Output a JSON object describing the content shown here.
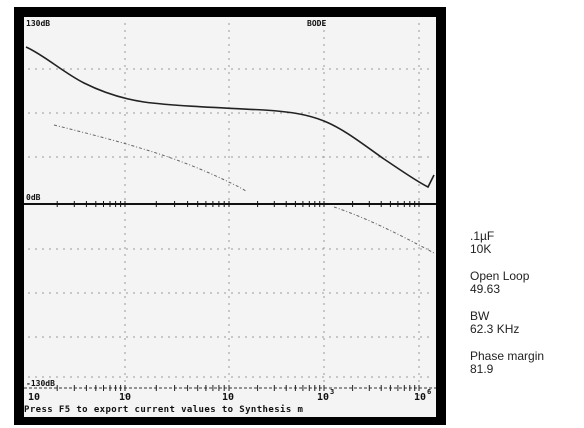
{
  "window": {
    "top_left_label": "130dB",
    "top_center_label": "BODE",
    "zero_label": "0dB",
    "bottom_label": "-130dB",
    "x_tick_labels": [
      "10",
      "10",
      "10",
      "10",
      "10"
    ],
    "x_tick_exponents": [
      "",
      "",
      "",
      "3",
      "6"
    ],
    "status_line": "Press F5 to export current values to Synthesis m"
  },
  "side_panel": {
    "capacitance": ".1µF",
    "resistance": "10K",
    "open_loop_label": "Open Loop",
    "open_loop_value": "49.63",
    "bw_label": "BW",
    "bw_value": "62.3 KHz",
    "phase_margin_label": "Phase margin",
    "phase_margin_value": "81.9"
  },
  "colors": {
    "frame": "#000000",
    "screen": "#f4f4f4",
    "trace": "#222222",
    "grid": "#9a9a9a"
  }
}
